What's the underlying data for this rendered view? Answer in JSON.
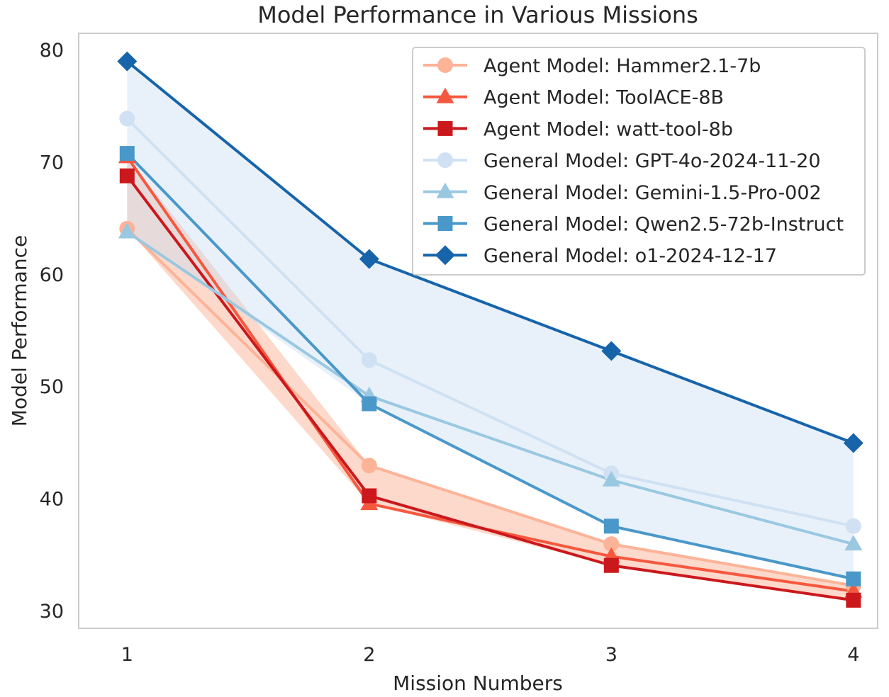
{
  "chart_data": {
    "type": "line",
    "title": "Model Performance in Various Missions",
    "xlabel": "Mission Numbers",
    "ylabel": "Model Performance",
    "x": [
      1,
      2,
      3,
      4
    ],
    "x_tick_labels": [
      "1",
      "2",
      "3",
      "4"
    ],
    "xlim": [
      0.8,
      4.1
    ],
    "ylim": [
      28.5,
      81.5
    ],
    "y_ticks": [
      30,
      40,
      50,
      60,
      70,
      80
    ],
    "y_tick_labels": [
      "30",
      "40",
      "50",
      "60",
      "70",
      "80"
    ],
    "grid": false,
    "legend_position": "top-right",
    "series": [
      {
        "name": "Agent Model: Hammer2.1-7b",
        "group": "agent",
        "marker": "circle",
        "color": "#fcb398",
        "values": [
          64.1,
          43.0,
          36.0,
          32.3
        ]
      },
      {
        "name": "Agent Model: ToolACE-8B",
        "group": "agent",
        "marker": "triangle",
        "color": "#f6583e",
        "values": [
          70.5,
          39.6,
          34.9,
          31.8
        ]
      },
      {
        "name": "Agent Model: watt-tool-8b",
        "group": "agent",
        "marker": "square",
        "color": "#cb181d",
        "values": [
          68.8,
          40.3,
          34.1,
          31.0
        ]
      },
      {
        "name": "General Model: GPT-4o-2024-11-20",
        "group": "general",
        "marker": "circle",
        "color": "#cfe1f2",
        "values": [
          73.9,
          52.4,
          42.3,
          37.6
        ]
      },
      {
        "name": "General Model: Gemini-1.5-Pro-002",
        "group": "general",
        "marker": "triangle",
        "color": "#9ac8e1",
        "values": [
          63.8,
          49.2,
          41.7,
          36.0
        ]
      },
      {
        "name": "General Model: Qwen2.5-72b-Instruct",
        "group": "general",
        "marker": "square",
        "color": "#4a98c9",
        "values": [
          70.8,
          48.5,
          37.6,
          32.9
        ]
      },
      {
        "name": "General Model: o1-2024-12-17",
        "group": "general",
        "marker": "diamond",
        "color": "#1764ab",
        "values": [
          79.0,
          61.4,
          53.2,
          45.0
        ]
      }
    ],
    "bands": [
      {
        "group": "agent",
        "color": "#fcb398",
        "opacity": 0.5
      },
      {
        "group": "general",
        "color": "#c6dbef",
        "opacity": 0.4
      }
    ]
  }
}
